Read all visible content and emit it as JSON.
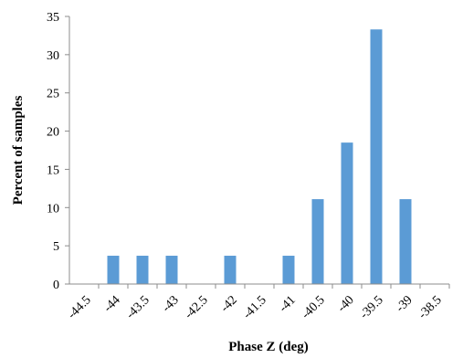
{
  "chart_data": {
    "type": "bar",
    "categories": [
      "-44.5",
      "-44",
      "-43.5",
      "-43",
      "-42.5",
      "-42",
      "-41.5",
      "-41",
      "-40.5",
      "-40",
      "-39.5",
      "-39",
      "-38.5"
    ],
    "values": [
      0,
      3.7,
      3.7,
      3.7,
      0,
      3.7,
      0,
      3.7,
      11.1,
      18.5,
      33.3,
      11.1,
      0
    ],
    "title": "",
    "xlabel": "Phase Z (deg)",
    "ylabel": "Percent of samples",
    "ylim": [
      0,
      35
    ],
    "yticks": [
      0,
      5,
      10,
      15,
      20,
      25,
      30,
      35
    ],
    "grid": false,
    "colors": {
      "bar": "#5b9bd5",
      "axis": "#8c8c8c"
    }
  }
}
